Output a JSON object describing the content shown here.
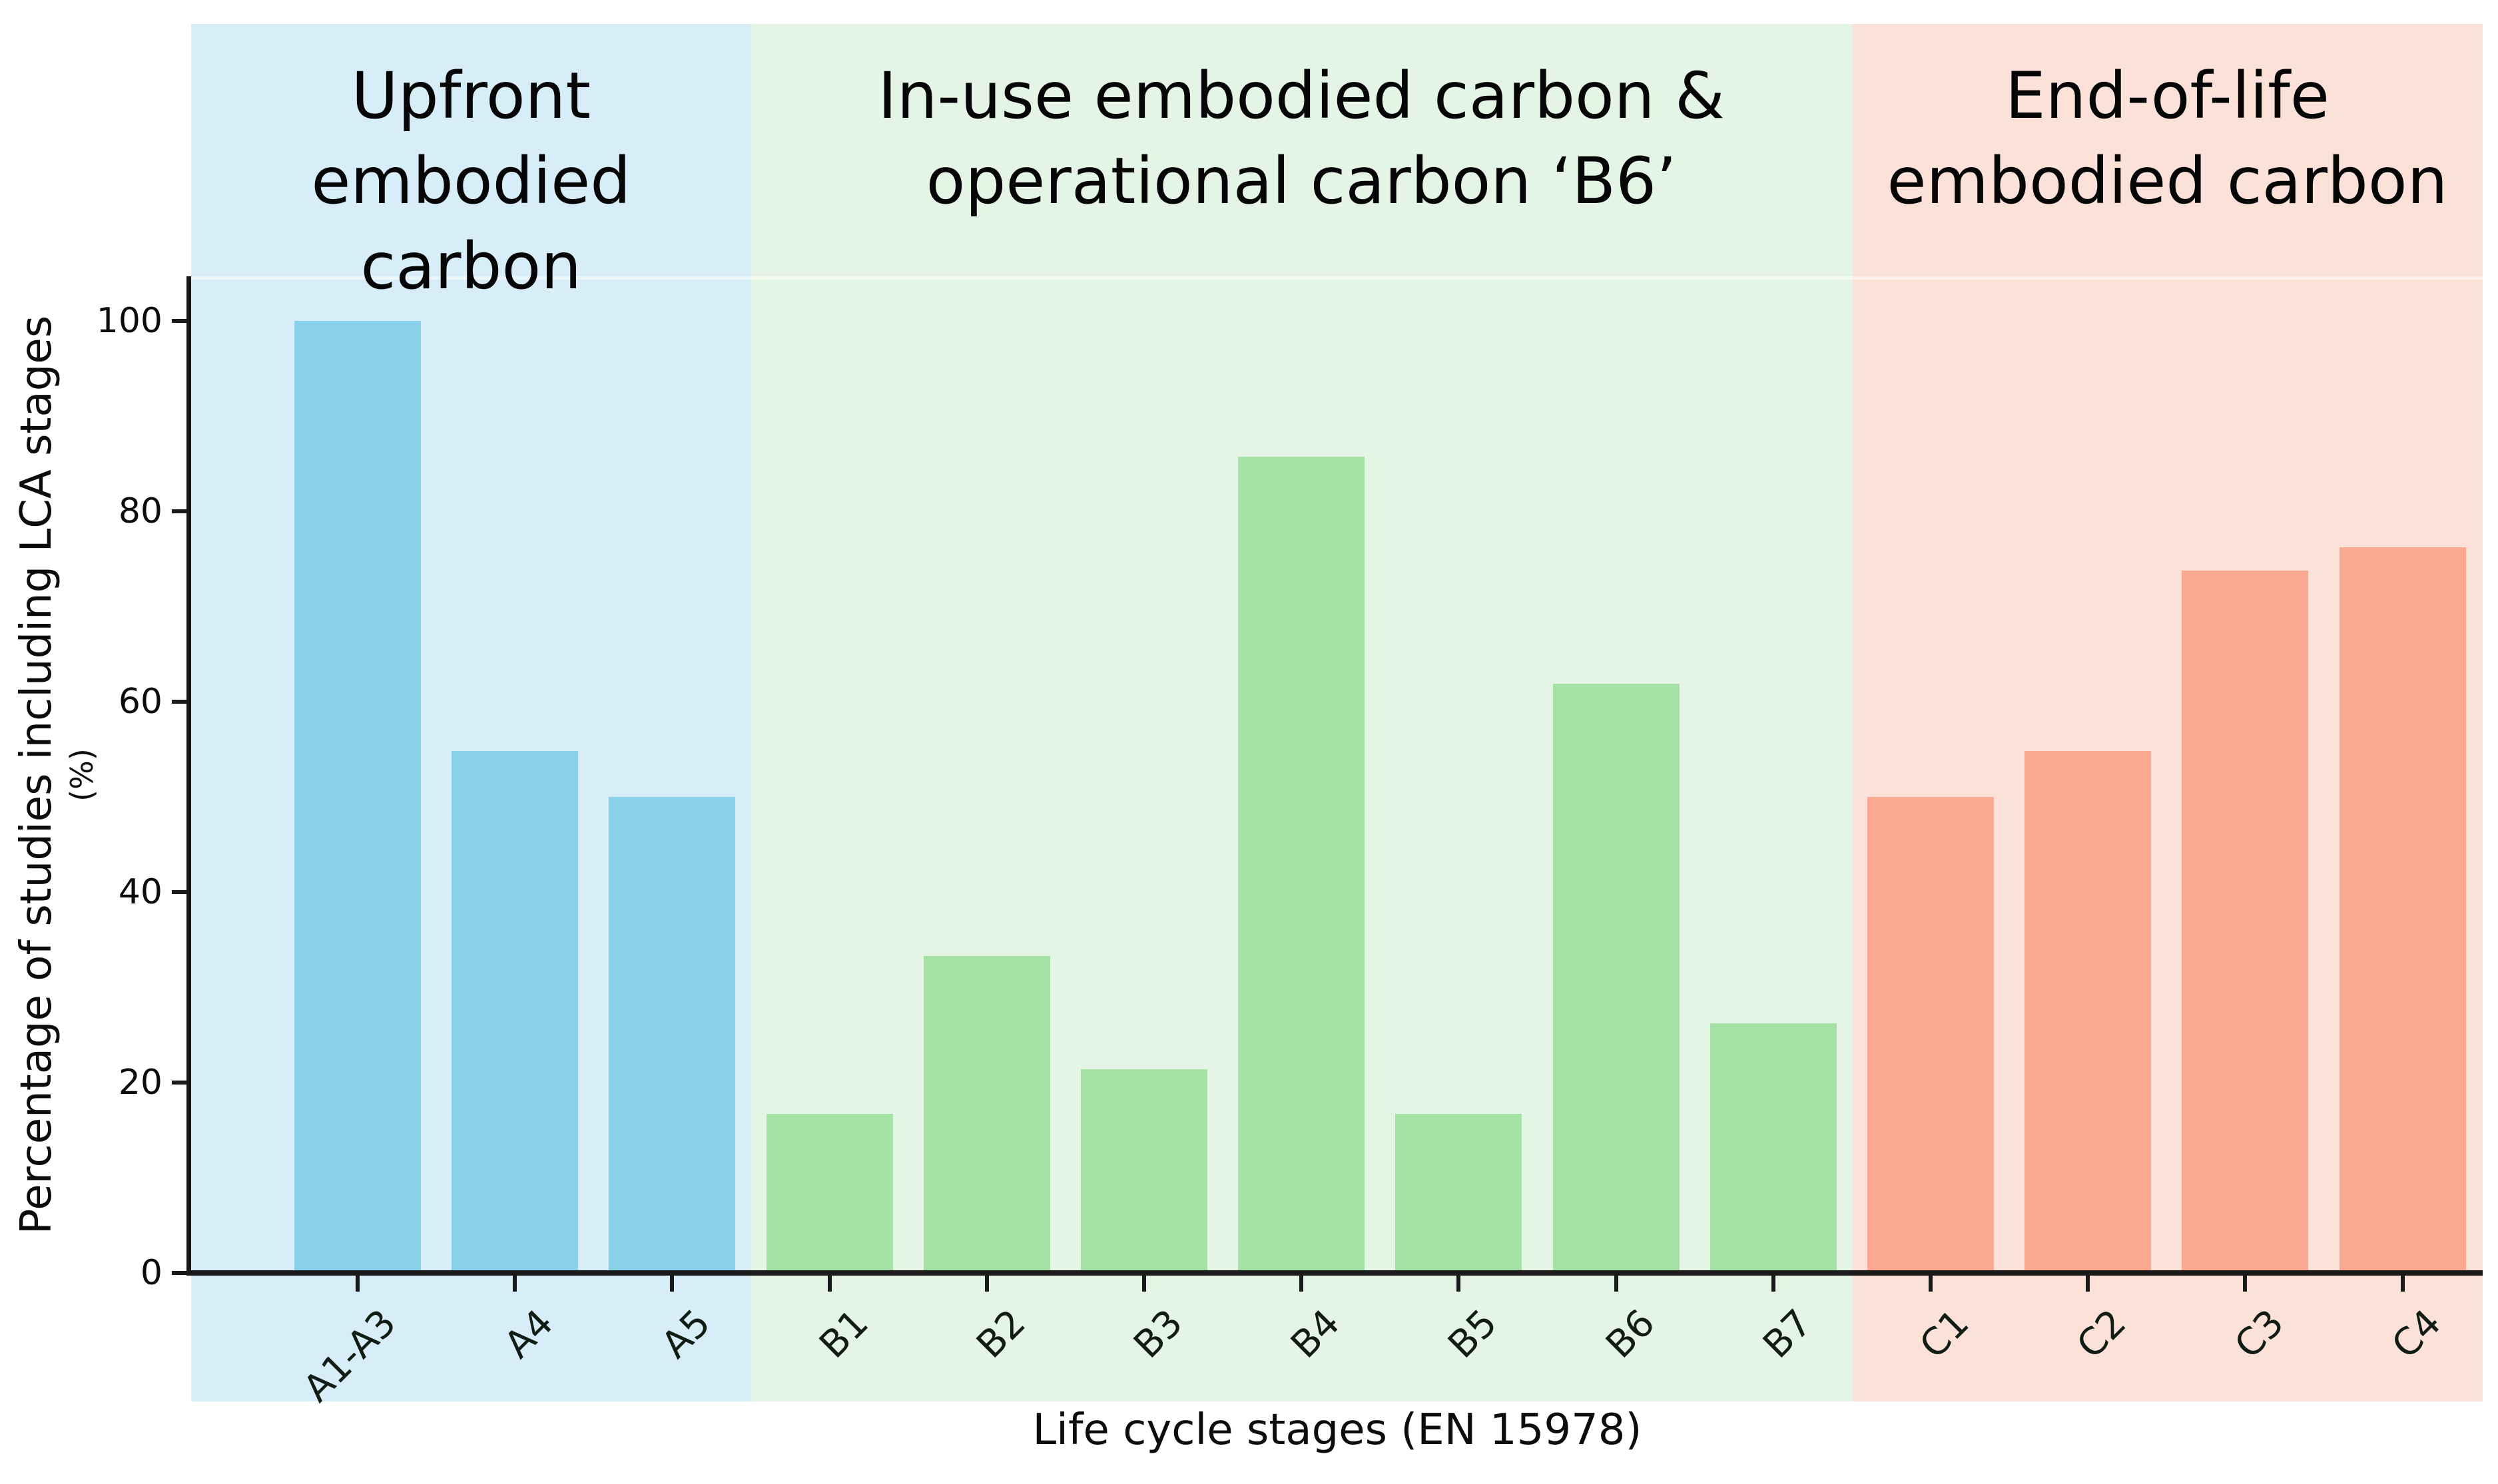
{
  "figure": {
    "background": "#ffffff",
    "axis_color": "#1a1a1a",
    "text_color": "#0c0c0c"
  },
  "groups": [
    {
      "id": "upfront",
      "title_lines": [
        "Upfront",
        "embodied",
        "carbon"
      ],
      "band_color": "#d7edf7",
      "bar_color": "#8ad2ea",
      "bar_count": 3
    },
    {
      "id": "in-use",
      "title_lines": [
        "In-use embodied carbon &",
        "operational carbon ‘B6’"
      ],
      "band_color": "#e4f5e5",
      "bar_color": "#a5e1a4",
      "bar_count": 7
    },
    {
      "id": "end-of-life",
      "title_lines": [
        "End-of-life",
        "embodied carbon"
      ],
      "band_color": "#fbe1d7",
      "bar_color": "#fbaa91",
      "bar_count": 4
    }
  ],
  "chart_data": {
    "type": "bar",
    "title": "",
    "categories": [
      "A1-A3",
      "A4",
      "A5",
      "B1",
      "B2",
      "B3",
      "B4",
      "B5",
      "B6",
      "B7",
      "C1",
      "C2",
      "C3",
      "C4"
    ],
    "values": [
      100,
      54.8,
      50,
      16.7,
      33.3,
      21.4,
      85.7,
      16.7,
      61.9,
      26.2,
      50,
      54.8,
      73.8,
      76.2
    ],
    "bar_group": [
      "upfront",
      "upfront",
      "upfront",
      "in-use",
      "in-use",
      "in-use",
      "in-use",
      "in-use",
      "in-use",
      "in-use",
      "end-of-life",
      "end-of-life",
      "end-of-life",
      "end-of-life"
    ],
    "group_titles": [
      "Upfront embodied carbon",
      "In-use embodied carbon & operational carbon ‘B6’",
      "End-of-life embodied carbon"
    ],
    "xlabel": "Life cycle stages (EN 15978)",
    "ylabel": "Percentage of studies including LCA stages",
    "ylabel_unit": "(%)",
    "yticks": [
      0,
      20,
      40,
      60,
      80,
      100
    ],
    "ylim": [
      0,
      105
    ],
    "grid": false,
    "legend_position": "none"
  }
}
